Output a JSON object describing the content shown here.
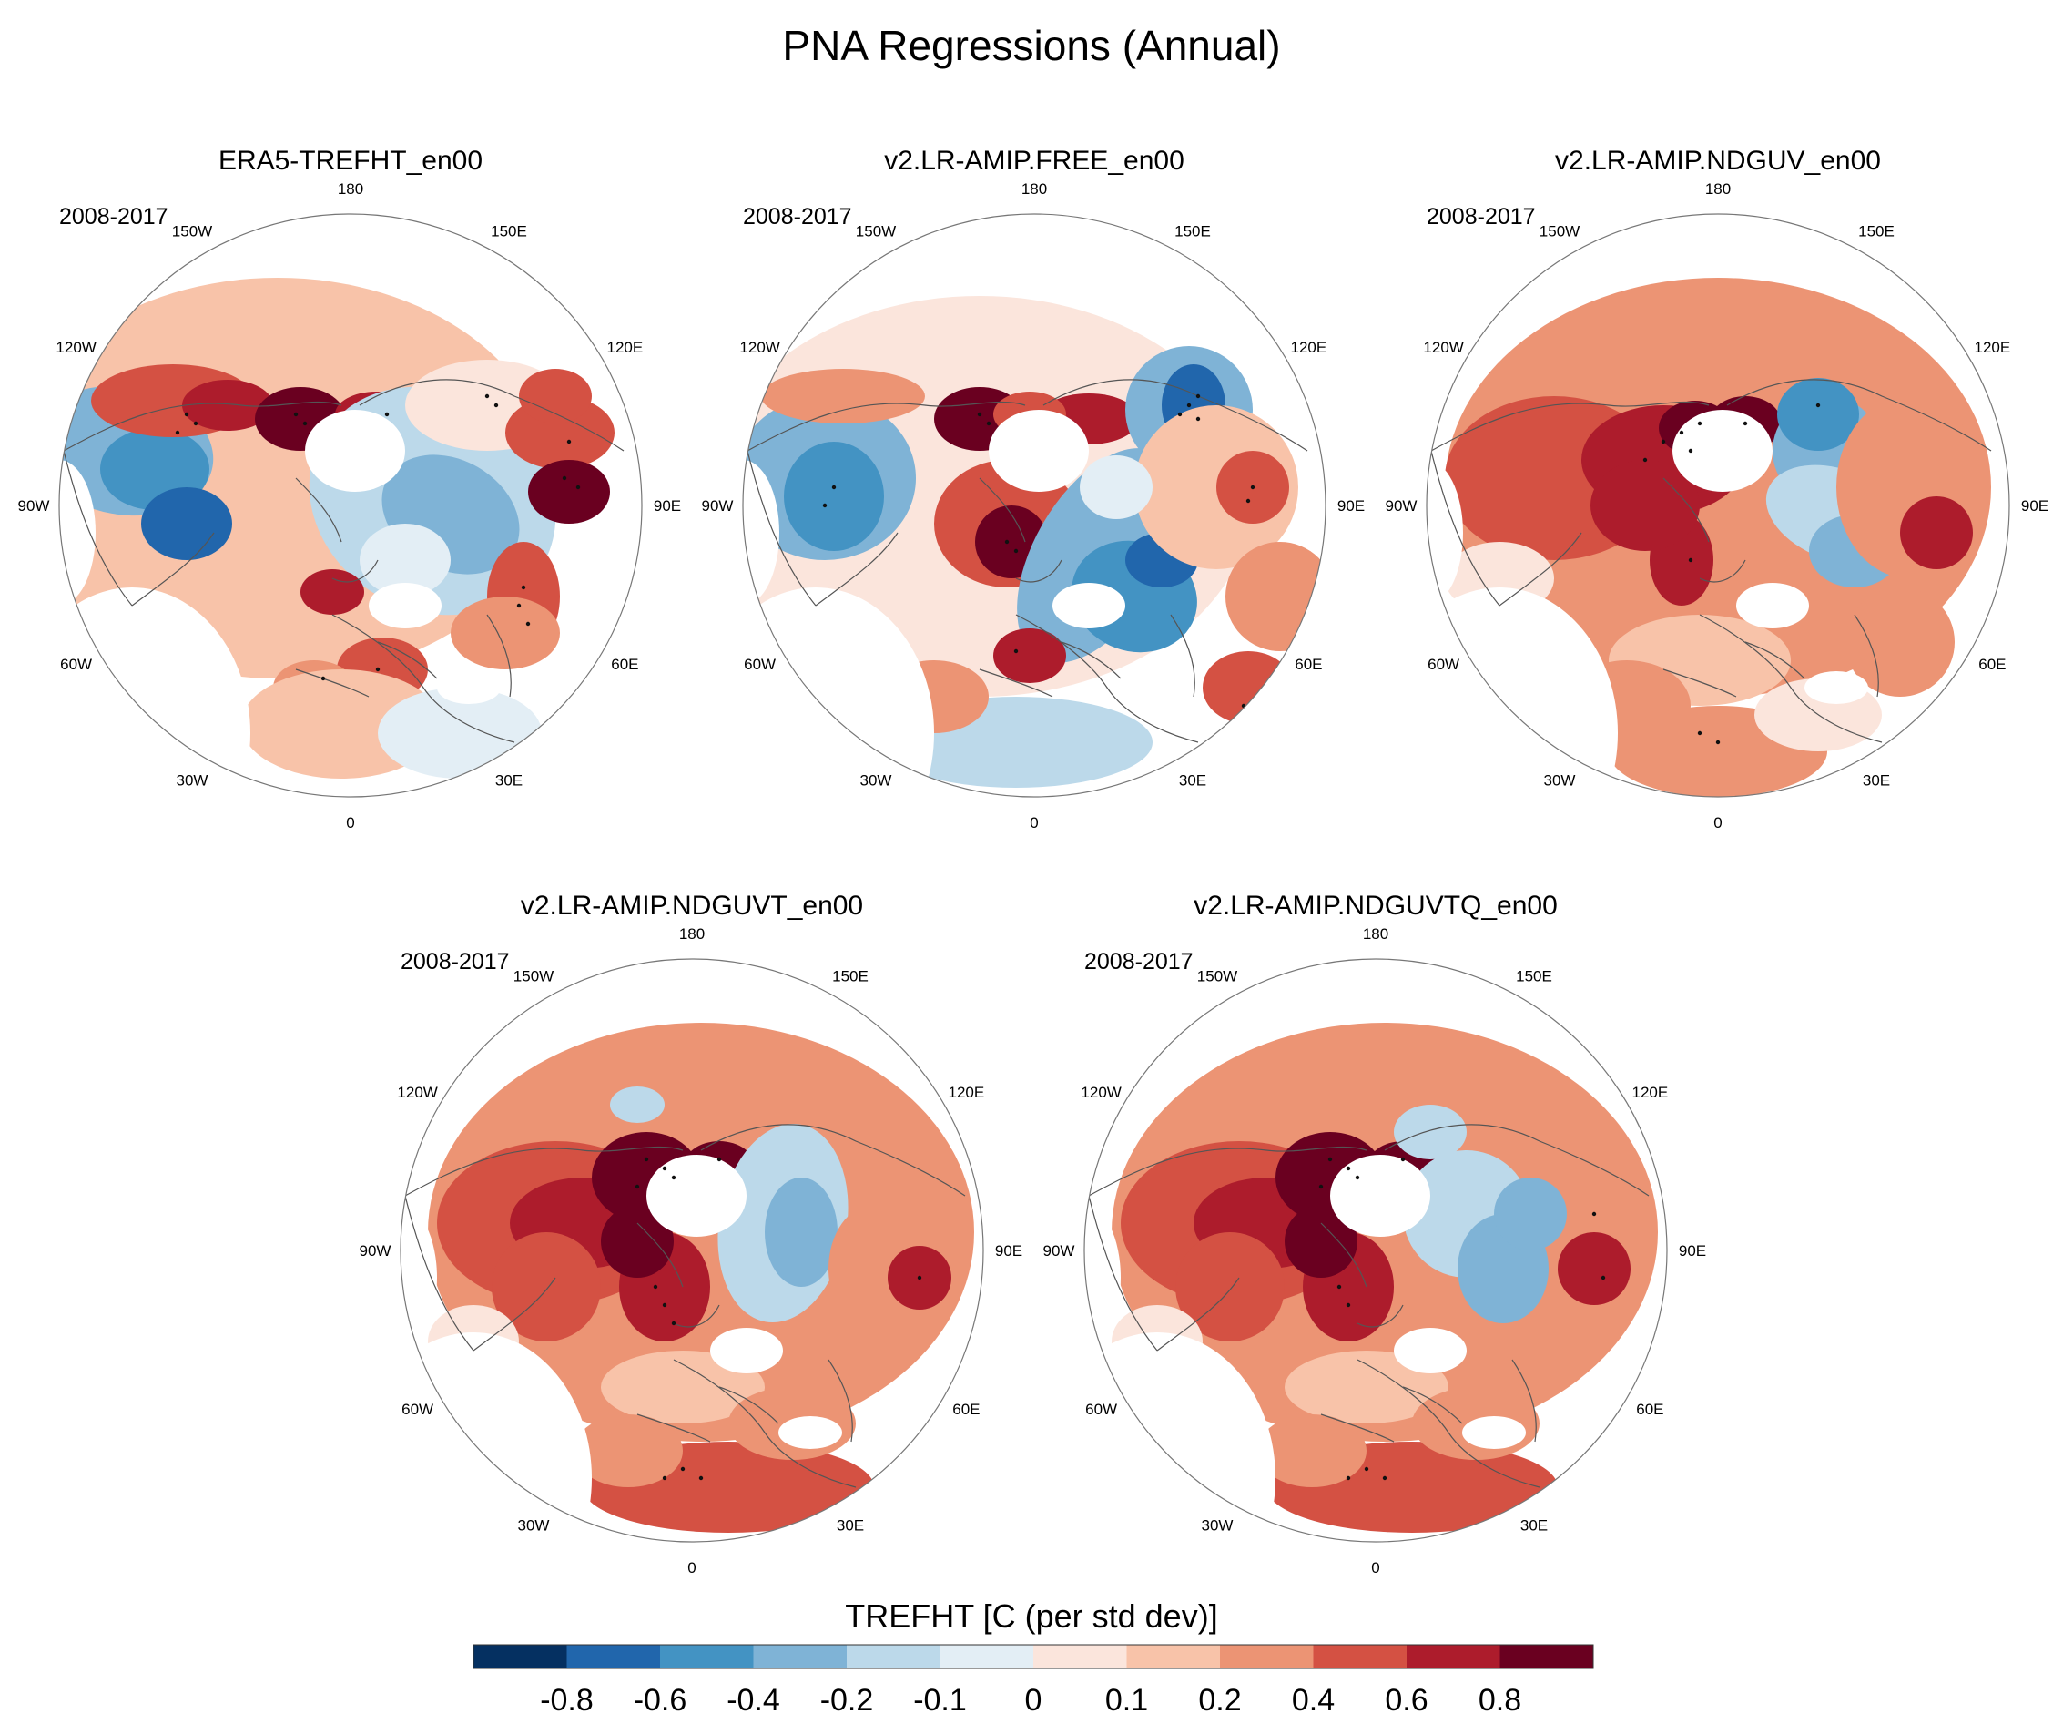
{
  "chart_data": {
    "type": "heatmap",
    "title": "PNA Regressions (Annual)",
    "projection": "north polar stereographic",
    "colorbar": {
      "title": "TREFHT [C (per std dev)]",
      "ticks": [
        "-0.8",
        "-0.6",
        "-0.4",
        "-0.2",
        "-0.1",
        "0",
        "0.1",
        "0.2",
        "0.4",
        "0.6",
        "0.8"
      ],
      "colors": [
        "#053061",
        "#2166ac",
        "#4393c3",
        "#7fb3d6",
        "#bcd9ea",
        "#e3eef5",
        "#fbe5dc",
        "#f8c3a9",
        "#ec9474",
        "#d45143",
        "#ad1c2c",
        "#6a0020"
      ]
    },
    "longitude_labels": [
      "180",
      "150E",
      "120E",
      "90E",
      "60E",
      "30E",
      "0",
      "30W",
      "60W",
      "90W",
      "120W",
      "150W"
    ],
    "panels": [
      {
        "title": "ERA5-TREFHT_en00",
        "period": "2008-2017"
      },
      {
        "title": "v2.LR-AMIP.FREE_en00",
        "period": "2008-2017"
      },
      {
        "title": "v2.LR-AMIP.NDGUV_en00",
        "period": "2008-2017"
      },
      {
        "title": "v2.LR-AMIP.NDGUVT_en00",
        "period": "2008-2017"
      },
      {
        "title": "v2.LR-AMIP.NDGUVTQ_en00",
        "period": "2008-2017"
      }
    ]
  }
}
